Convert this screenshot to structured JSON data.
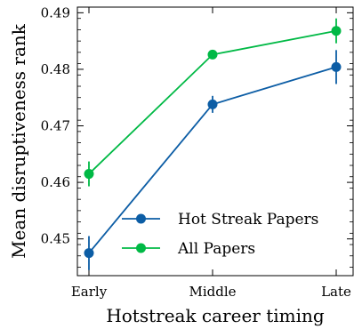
{
  "chart_data": {
    "type": "line",
    "xlabel": "Hotstreak career timing",
    "ylabel": "Mean disruptiveness rank",
    "categories": [
      "Early",
      "Middle",
      "Late"
    ],
    "ylim": [
      0.4435,
      0.491
    ],
    "yticks": [
      0.45,
      0.46,
      0.47,
      0.48,
      0.49
    ],
    "ytick_labels": [
      "0.45",
      "0.46",
      "0.47",
      "0.48",
      "0.49"
    ],
    "legend_position": "lower-right",
    "grid": false,
    "series": [
      {
        "name": "Hot Streak Papers",
        "color": "#0c5da5",
        "values": [
          0.4475,
          0.4738,
          0.4804
        ],
        "errors": [
          0.003,
          0.0015,
          0.003
        ]
      },
      {
        "name": "All Papers",
        "color": "#00b945",
        "values": [
          0.4615,
          0.4826,
          0.4868
        ],
        "errors": [
          0.0022,
          0.0008,
          0.0022
        ]
      }
    ]
  }
}
